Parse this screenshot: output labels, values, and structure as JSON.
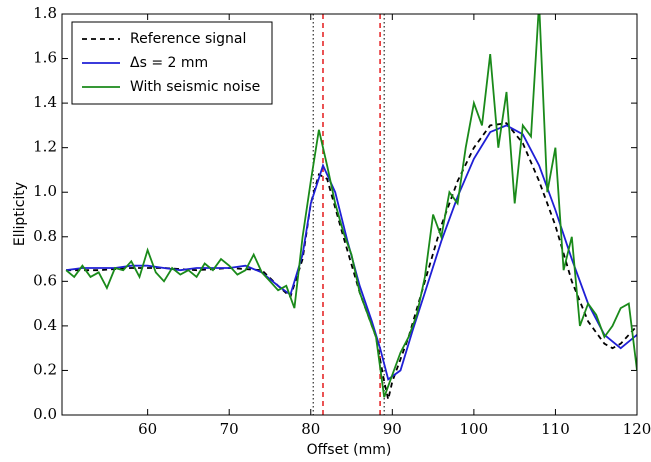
{
  "chart_data": {
    "type": "line",
    "xlabel": "Offset (mm)",
    "ylabel": "Ellipticity",
    "xlim": [
      49.5,
      120
    ],
    "ylim": [
      0,
      1.8
    ],
    "xticks": [
      60,
      70,
      80,
      90,
      100,
      110,
      120
    ],
    "yticks": [
      {
        "value": 0,
        "label": "0.0"
      },
      0.2,
      0.4,
      0.6,
      0.8,
      {
        "value": 1,
        "label": "1.0"
      },
      1.2,
      1.4,
      1.6,
      1.8
    ],
    "legend": "upper left",
    "vlines": [
      {
        "x": 80.3,
        "color": "#000000",
        "style": "dotted"
      },
      {
        "x": 89,
        "color": "#000000",
        "style": "dotted"
      },
      {
        "x": 81.5,
        "color": "#e41a1c",
        "style": "dashed"
      },
      {
        "x": 88.5,
        "color": "#e41a1c",
        "style": "dashed"
      }
    ],
    "series": [
      {
        "name": "Reference signal",
        "color": "#000000",
        "style": "dashed",
        "x": [
          50,
          54,
          58,
          62,
          66,
          70,
          74,
          76,
          77.5,
          79,
          80,
          81,
          82,
          84,
          86,
          88,
          89,
          89.5,
          90,
          92,
          94,
          96,
          98,
          100,
          102,
          104,
          106,
          108,
          110,
          112,
          114,
          116,
          117,
          118,
          120
        ],
        "values": [
          0.65,
          0.65,
          0.66,
          0.66,
          0.65,
          0.66,
          0.65,
          0.58,
          0.53,
          0.7,
          0.95,
          1.08,
          1.06,
          0.8,
          0.55,
          0.35,
          0.15,
          0.07,
          0.15,
          0.35,
          0.6,
          0.85,
          1.05,
          1.2,
          1.3,
          1.31,
          1.22,
          1.05,
          0.85,
          0.6,
          0.42,
          0.32,
          0.3,
          0.32,
          0.4
        ]
      },
      {
        "name": "Δs = 2 mm",
        "color": "#1f1fd6",
        "style": "solid",
        "x": [
          50,
          52,
          54,
          56,
          58,
          60,
          62,
          64,
          66,
          68,
          70,
          72,
          74,
          76,
          77.5,
          79,
          80,
          81.5,
          83,
          84.5,
          86,
          87.5,
          88.5,
          89.5,
          91,
          92.5,
          94,
          96,
          98,
          100,
          102,
          104,
          106,
          108,
          110,
          112,
          114,
          116,
          118,
          120
        ],
        "values": [
          0.65,
          0.66,
          0.66,
          0.66,
          0.67,
          0.67,
          0.66,
          0.65,
          0.66,
          0.66,
          0.66,
          0.67,
          0.64,
          0.58,
          0.54,
          0.72,
          0.95,
          1.12,
          1.0,
          0.78,
          0.58,
          0.42,
          0.3,
          0.16,
          0.2,
          0.38,
          0.55,
          0.78,
          0.98,
          1.15,
          1.27,
          1.3,
          1.26,
          1.12,
          0.92,
          0.7,
          0.5,
          0.36,
          0.3,
          0.36
        ]
      },
      {
        "name": "With seismic noise",
        "color": "#1a8a1a",
        "style": "solid",
        "x": [
          50,
          51,
          52,
          53,
          54,
          55,
          56,
          57,
          58,
          59,
          60,
          61,
          62,
          63,
          64,
          65,
          66,
          67,
          68,
          69,
          70,
          71,
          72,
          73,
          74,
          75,
          76,
          77,
          78,
          79,
          80,
          81,
          82,
          83,
          84,
          85,
          86,
          87,
          88,
          89,
          90,
          91,
          92,
          93,
          94,
          95,
          96,
          97,
          98,
          99,
          100,
          101,
          102,
          103,
          104,
          105,
          106,
          107,
          108,
          109,
          110,
          111,
          112,
          113,
          114,
          115,
          116,
          117,
          118,
          119,
          120
        ],
        "values": [
          0.65,
          0.62,
          0.67,
          0.62,
          0.64,
          0.57,
          0.66,
          0.65,
          0.69,
          0.62,
          0.74,
          0.64,
          0.6,
          0.66,
          0.63,
          0.65,
          0.62,
          0.68,
          0.65,
          0.7,
          0.67,
          0.63,
          0.65,
          0.72,
          0.64,
          0.6,
          0.56,
          0.58,
          0.48,
          0.8,
          1.05,
          1.28,
          1.12,
          0.95,
          0.82,
          0.72,
          0.55,
          0.45,
          0.35,
          0.08,
          0.18,
          0.28,
          0.35,
          0.45,
          0.62,
          0.9,
          0.8,
          1.0,
          0.95,
          1.2,
          1.4,
          1.3,
          1.62,
          1.2,
          1.45,
          0.95,
          1.3,
          1.25,
          1.85,
          1.0,
          1.2,
          0.65,
          0.8,
          0.4,
          0.5,
          0.45,
          0.35,
          0.4,
          0.48,
          0.5,
          0.2
        ]
      }
    ]
  }
}
